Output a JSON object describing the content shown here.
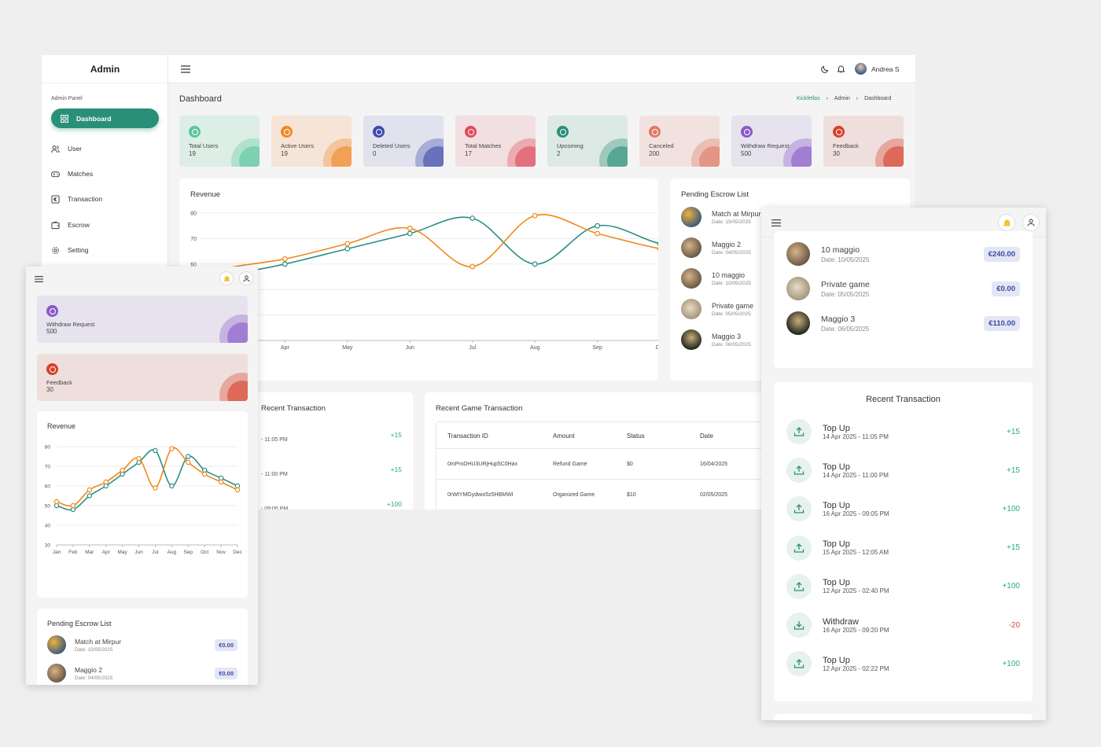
{
  "desktop": {
    "brand": "Admin",
    "sidebar": {
      "section_label": "Admin Panel",
      "items": [
        {
          "label": "Dashboard",
          "icon": "grid-icon"
        },
        {
          "label": "User",
          "icon": "users-icon"
        },
        {
          "label": "Matches",
          "icon": "gamepad-icon"
        },
        {
          "label": "Transaction",
          "icon": "euro-icon"
        },
        {
          "label": "Escrow",
          "icon": "wallet-icon"
        },
        {
          "label": "Setting",
          "icon": "gear-icon"
        }
      ]
    },
    "header": {
      "user_name": "Andrea S"
    },
    "page_title": "Dashboard",
    "breadcrumb": [
      "Kickfellas",
      "Admin",
      "Dashboard"
    ],
    "stats": [
      {
        "label": "Total Users",
        "value": "19",
        "bg": "#ddeee6",
        "accent": "#5cc5a0"
      },
      {
        "label": "Active Users",
        "value": "19",
        "bg": "#f6e4d6",
        "accent": "#f0892a"
      },
      {
        "label": "Deleted Users",
        "value": "0",
        "bg": "#e0e2ee",
        "accent": "#3d4aa8"
      },
      {
        "label": "Total Matches",
        "value": "17",
        "bg": "#f1dfe1",
        "accent": "#e04a5a"
      },
      {
        "label": "Upcoming",
        "value": "2",
        "bg": "#dde9e5",
        "accent": "#2a8f78"
      },
      {
        "label": "Canceled",
        "value": "200",
        "bg": "#f2e2df",
        "accent": "#e07a66"
      },
      {
        "label": "Withdraw Request",
        "value": "500",
        "bg": "#e6e3ee",
        "accent": "#8a5ac8"
      },
      {
        "label": "Feedback",
        "value": "30",
        "bg": "#efdfdc",
        "accent": "#d8402c"
      }
    ],
    "revenue_title": "Revenue",
    "escrow_title": "Pending Escrow List",
    "escrow": [
      {
        "name": "Match at Mirpur",
        "date": "Date: 15/05/2025"
      },
      {
        "name": "Maggio 2",
        "date": "Date: 04/05/2025"
      },
      {
        "name": "10 maggio",
        "date": "Date: 10/05/2025"
      },
      {
        "name": "Private game",
        "date": "Date: 05/05/2025"
      },
      {
        "name": "Maggio 3",
        "date": "Date: 06/05/2025"
      }
    ],
    "recent_tx_title": "Recent Transaction",
    "recent_tx": [
      {
        "time": "- 11:05 PM",
        "amount": "+15"
      },
      {
        "time": "- 11:00 PM",
        "amount": "+15"
      },
      {
        "time": "- 09:05 PM",
        "amount": "+100"
      }
    ],
    "game_tx_title": "Recent Game Transaction",
    "game_tx_columns": [
      "Transaction ID",
      "Amount",
      "Status",
      "Date"
    ],
    "game_tx_rows": [
      {
        "id": "0mPmDHU3URjHup5C0Hax",
        "amount": "Refund Game",
        "status": "$0",
        "date": "16/04/2025"
      },
      {
        "id": "0rWtYMGydwix5z5HBMWI",
        "amount": "Organized Game",
        "status": "$10",
        "date": "02/05/2025"
      }
    ]
  },
  "mobile": {
    "stats": [
      {
        "label": "Withdraw Request",
        "value": "500"
      },
      {
        "label": "Feedback",
        "value": "30"
      }
    ],
    "revenue_title": "Revenue",
    "escrow_title": "Pending Escrow List",
    "escrow": [
      {
        "name": "Match at Mirpur",
        "date": "Date: 15/05/2025",
        "amount": "€0.00"
      },
      {
        "name": "Maggio 2",
        "date": "Date: 04/05/2025",
        "amount": "€0.00"
      }
    ]
  },
  "tablet": {
    "escrow": [
      {
        "name": "10 maggio",
        "date": "Date: 10/05/2025",
        "amount": "€240.00"
      },
      {
        "name": "Private game",
        "date": "Date: 05/05/2025",
        "amount": "€0.00"
      },
      {
        "name": "Maggio 3",
        "date": "Date: 06/05/2025",
        "amount": "€110.00"
      }
    ],
    "recent_tx_title": "Recent Transaction",
    "recent_tx": [
      {
        "title": "Top Up",
        "time": "14 Apr 2025 - 11:05 PM",
        "amount": "+15",
        "type": "up"
      },
      {
        "title": "Top Up",
        "time": "14 Apr 2025 - 11:00 PM",
        "amount": "+15",
        "type": "up"
      },
      {
        "title": "Top Up",
        "time": "16 Apr 2025 - 09:05 PM",
        "amount": "+100",
        "type": "up"
      },
      {
        "title": "Top Up",
        "time": "15 Apr 2025 - 12:05 AM",
        "amount": "+15",
        "type": "up"
      },
      {
        "title": "Top Up",
        "time": "12 Apr 2025 - 02:40 PM",
        "amount": "+100",
        "type": "up"
      },
      {
        "title": "Withdraw",
        "time": "16 Apr 2025 - 09:20 PM",
        "amount": "-20",
        "type": "down"
      },
      {
        "title": "Top Up",
        "time": "12 Apr 2025 - 02:22 PM",
        "amount": "+100",
        "type": "up"
      }
    ]
  },
  "chart_data": {
    "type": "line",
    "title": "Revenue",
    "categories": [
      "Jan",
      "Feb",
      "Mar",
      "Apr",
      "May",
      "Jun",
      "Jul",
      "Aug",
      "Sep",
      "Oct",
      "Nov",
      "Dec"
    ],
    "ylim": [
      30,
      80
    ],
    "yticks": [
      30,
      40,
      50,
      60,
      70,
      80
    ],
    "grid": true,
    "series": [
      {
        "values": [
          50,
          48,
          55,
          60,
          66,
          72,
          78,
          60,
          75,
          68,
          64,
          60
        ],
        "color": "#2a8f86"
      },
      {
        "values": [
          52,
          50,
          58,
          62,
          68,
          74,
          59,
          79,
          72,
          66,
          62,
          58
        ],
        "color": "#f0891a"
      }
    ]
  }
}
